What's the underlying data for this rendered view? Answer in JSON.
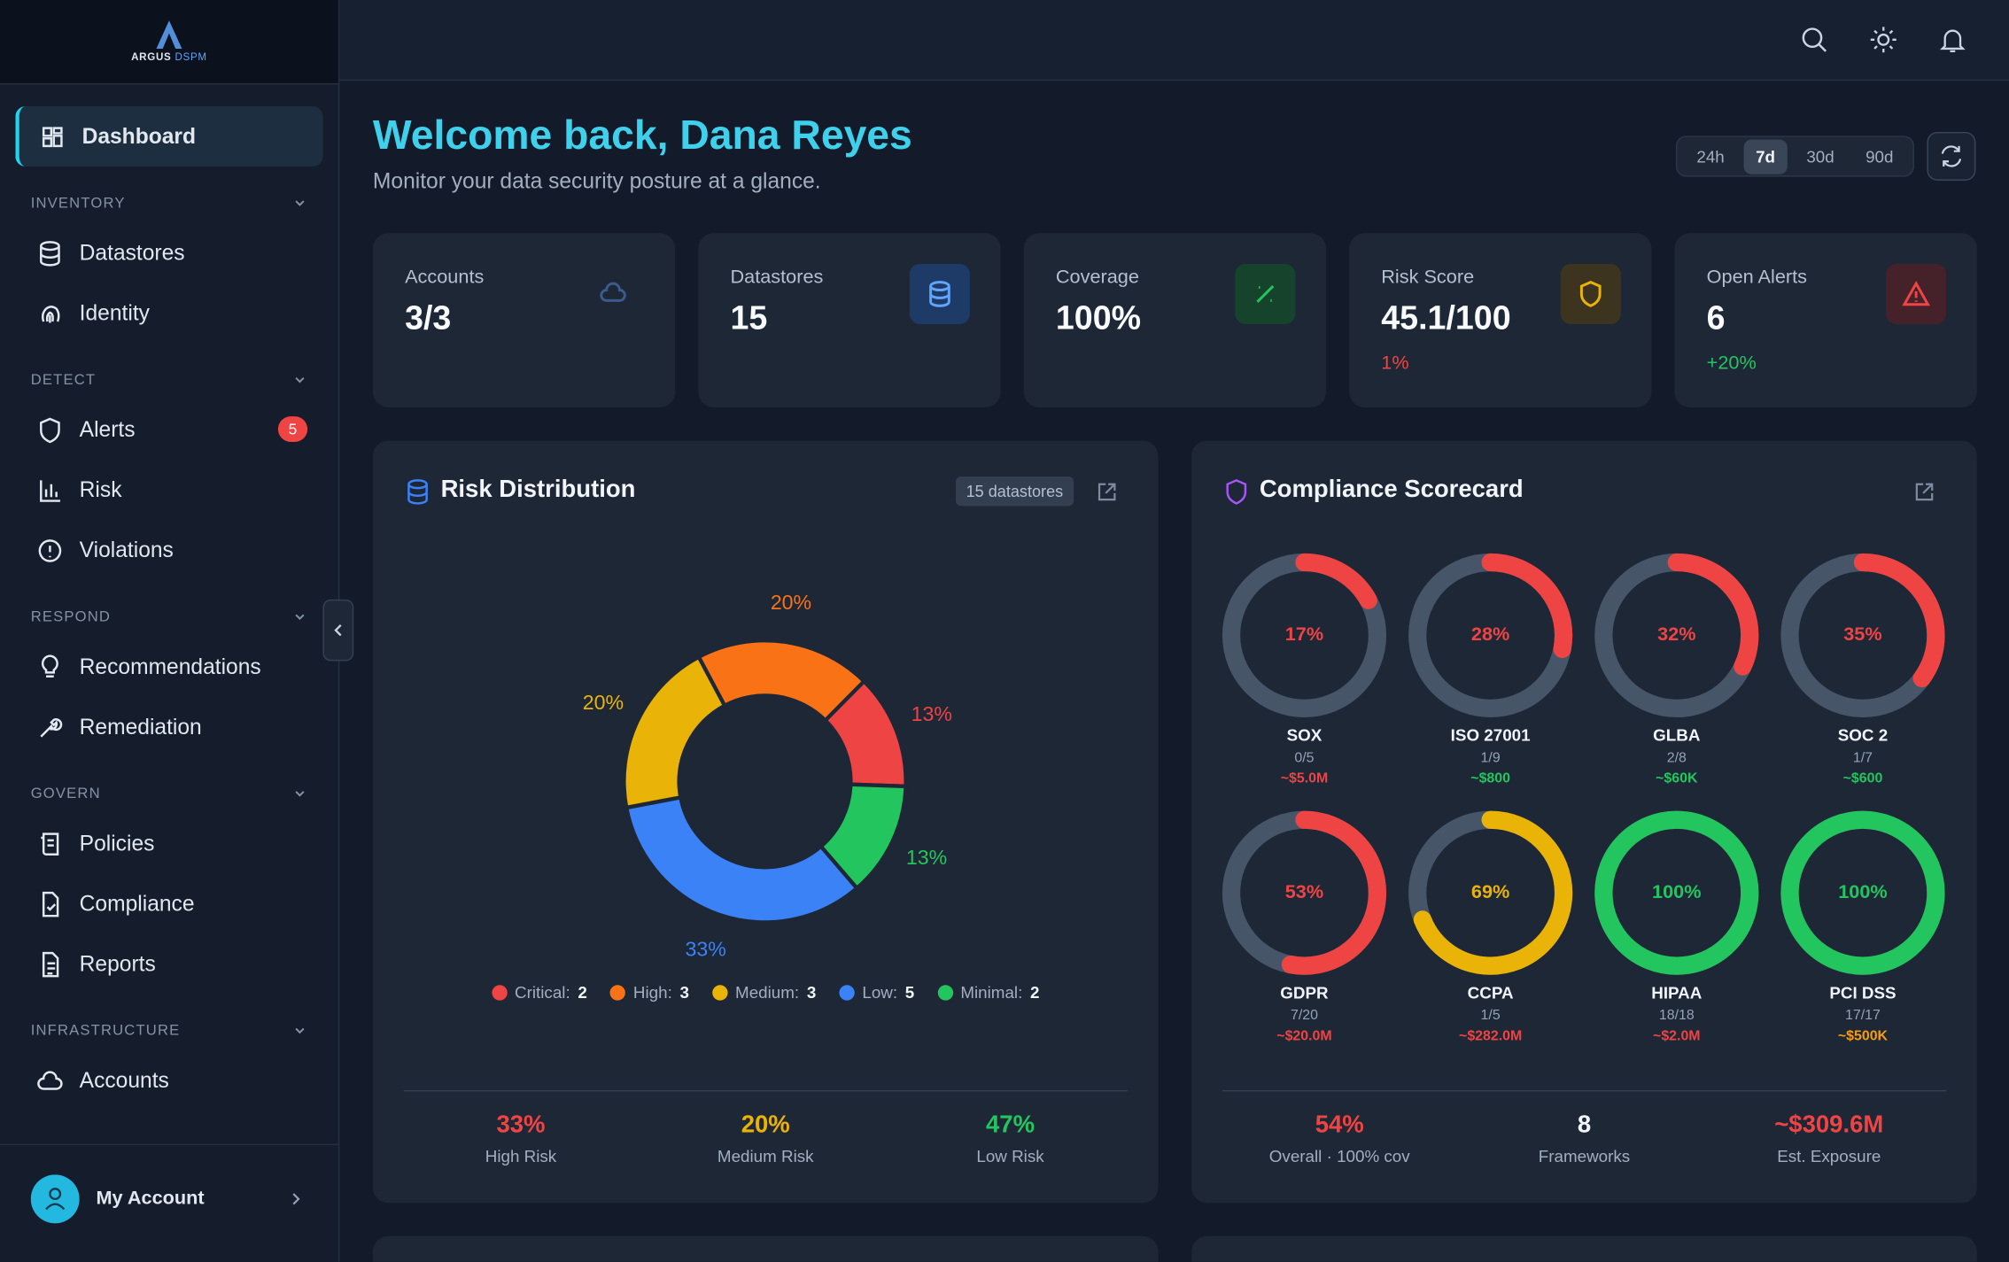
{
  "sidebar": {
    "brand": "ARGUS",
    "brand_sub": "DSPM",
    "active": "Dashboard",
    "sections": [
      {
        "title": "INVENTORY",
        "items": [
          {
            "label": "Datastores"
          },
          {
            "label": "Identity"
          }
        ]
      },
      {
        "title": "DETECT",
        "items": [
          {
            "label": "Alerts",
            "badge": 5
          },
          {
            "label": "Risk"
          },
          {
            "label": "Violations"
          }
        ]
      },
      {
        "title": "RESPOND",
        "items": [
          {
            "label": "Recommendations"
          },
          {
            "label": "Remediation"
          }
        ]
      },
      {
        "title": "GOVERN",
        "items": [
          {
            "label": "Policies"
          },
          {
            "label": "Compliance"
          },
          {
            "label": "Reports"
          }
        ]
      },
      {
        "title": "INFRASTRUCTURE",
        "items": [
          {
            "label": "Accounts"
          }
        ]
      }
    ],
    "account": "My Account"
  },
  "header": {
    "title": "Welcome back, Dana Reyes",
    "subtitle": "Monitor your data security posture at a glance.",
    "ranges": [
      "24h",
      "7d",
      "30d",
      "90d"
    ],
    "selected_range": "7d"
  },
  "stats": [
    {
      "label": "Accounts",
      "value": "3/3",
      "icon_color": "#3b5b8a"
    },
    {
      "label": "Datastores",
      "value": "15",
      "icon_color": "#60a5fa",
      "icon_bg": "#1e3a66"
    },
    {
      "label": "Coverage",
      "value": "100%",
      "icon_color": "#22c55e",
      "icon_bg": "#15432c"
    },
    {
      "label": "Risk Score",
      "value": "45.1/100",
      "change": "1%",
      "change_color": "#ef4444",
      "icon_color": "#eab308",
      "icon_bg": "#3d3420"
    },
    {
      "label": "Open Alerts",
      "value": "6",
      "change": "+20%",
      "change_color": "#22c55e",
      "icon_color": "#ef4444",
      "icon_bg": "#45222a"
    }
  ],
  "risk_distribution": {
    "title": "Risk Distribution",
    "badge": "15 datastores",
    "type": "pie",
    "segments": [
      {
        "value": 20,
        "value_label": "20%",
        "color": "#f97316"
      },
      {
        "value": 13,
        "value_label": "13%",
        "color": "#ef4444"
      },
      {
        "value": 13,
        "value_label": "13%",
        "color": "#22c55e"
      },
      {
        "value": 33,
        "value_label": "33%",
        "color": "#3b82f6"
      },
      {
        "value": 20,
        "value_label": "20%",
        "color": "#eab308"
      }
    ],
    "legend": [
      {
        "name": "Critical:",
        "count": 2,
        "color": "#ef4444"
      },
      {
        "name": "High:",
        "count": 3,
        "color": "#f97316"
      },
      {
        "name": "Medium:",
        "count": 3,
        "color": "#eab308"
      },
      {
        "name": "Low:",
        "count": 5,
        "color": "#3b82f6"
      },
      {
        "name": "Minimal:",
        "count": 2,
        "color": "#22c55e"
      }
    ],
    "summary": [
      {
        "value": "33%",
        "label": "High Risk",
        "color": "#ef4444"
      },
      {
        "value": "20%",
        "label": "Medium Risk",
        "color": "#eab308"
      },
      {
        "value": "47%",
        "label": "Low Risk",
        "color": "#22c55e"
      }
    ]
  },
  "compliance": {
    "title": "Compliance Scorecard",
    "type": "gauge",
    "frameworks": [
      {
        "name": "SOX",
        "value": 17,
        "value_label": "17%",
        "controls": "0/5",
        "exposure": "~$5.0M",
        "color": "#ef4444",
        "exposure_color": "#ef4444"
      },
      {
        "name": "ISO 27001",
        "value": 28,
        "value_label": "28%",
        "controls": "1/9",
        "exposure": "~$800",
        "color": "#ef4444",
        "exposure_color": "#22c55e"
      },
      {
        "name": "GLBA",
        "value": 32,
        "value_label": "32%",
        "controls": "2/8",
        "exposure": "~$60K",
        "color": "#ef4444",
        "exposure_color": "#22c55e"
      },
      {
        "name": "SOC 2",
        "value": 35,
        "value_label": "35%",
        "controls": "1/7",
        "exposure": "~$600",
        "color": "#ef4444",
        "exposure_color": "#22c55e"
      },
      {
        "name": "GDPR",
        "value": 53,
        "value_label": "53%",
        "controls": "7/20",
        "exposure": "~$20.0M",
        "color": "#ef4444",
        "exposure_color": "#ef4444"
      },
      {
        "name": "CCPA",
        "value": 69,
        "value_label": "69%",
        "controls": "1/5",
        "exposure": "~$282.0M",
        "color": "#eab308",
        "exposure_color": "#ef4444"
      },
      {
        "name": "HIPAA",
        "value": 100,
        "value_label": "100%",
        "controls": "18/18",
        "exposure": "~$2.0M",
        "color": "#22c55e",
        "exposure_color": "#ef4444"
      },
      {
        "name": "PCI DSS",
        "value": 100,
        "value_label": "100%",
        "controls": "17/17",
        "exposure": "~$500K",
        "color": "#22c55e",
        "exposure_color": "#f59e0b"
      }
    ],
    "summary": [
      {
        "value": "54%",
        "label": "Overall · 100% cov",
        "color": "#ef4444"
      },
      {
        "value": "8",
        "label": "Frameworks",
        "color": "#f1f5f9"
      },
      {
        "value": "~$309.6M",
        "label": "Est. Exposure",
        "color": "#ef4444"
      }
    ]
  }
}
